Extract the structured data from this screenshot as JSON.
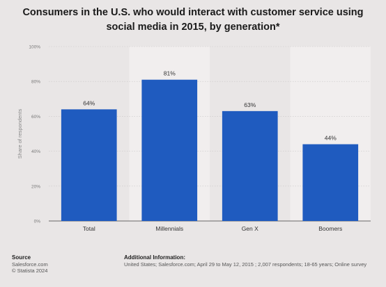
{
  "chart_data": {
    "type": "bar",
    "title": "Consumers in the U.S. who would interact with customer service using social media in 2015, by generation*",
    "categories": [
      "Total",
      "Millennials",
      "Gen X",
      "Boomers"
    ],
    "values": [
      64,
      81,
      63,
      44
    ],
    "value_labels": [
      "64%",
      "81%",
      "63%",
      "44%"
    ],
    "ylabel": "Share of respondents",
    "ylim": [
      0,
      100
    ],
    "yticks": [
      0,
      20,
      40,
      60,
      80,
      100
    ],
    "ytick_labels": [
      "0%",
      "20%",
      "40%",
      "60%",
      "80%",
      "100%"
    ],
    "grid": true,
    "bar_color": "#1f5bbf"
  },
  "footer": {
    "source_heading": "Source",
    "source_line1": "Salesforce.com",
    "source_line2": "© Statista 2024",
    "info_heading": "Additional Information:",
    "info_text": "United States; Salesforce.com; April 29 to May 12, 2015 ; 2,007 respondents; 18-65 years; Online survey"
  }
}
